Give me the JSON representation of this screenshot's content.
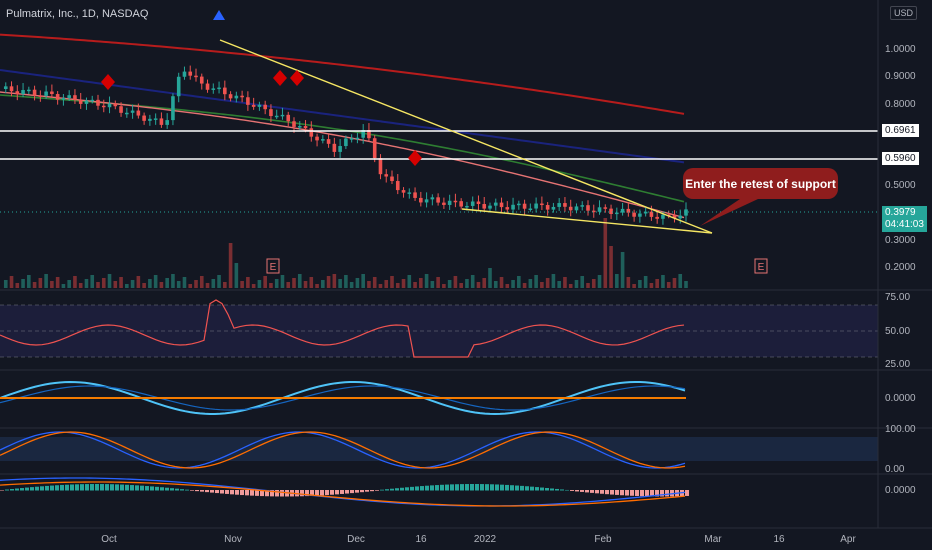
{
  "header": {
    "title": "Pulmatrix, Inc., 1D, NASDAQ",
    "currency": "USD"
  },
  "price_axis": {
    "ticks": [
      "1.0000",
      "0.9000",
      "0.8000",
      "0.7000",
      "0.6000",
      "0.5000",
      "0.4000",
      "0.3000",
      "0.2000"
    ],
    "levels": [
      {
        "label": "0.6961"
      },
      {
        "label": "0.5960"
      }
    ],
    "current": {
      "price": "0.3979",
      "countdown": "04:41:03"
    }
  },
  "annotation": {
    "text": "Enter the retest of support"
  },
  "earnings_marker": "E",
  "x_axis": {
    "labels": [
      "Oct",
      "Nov",
      "Dec",
      "16",
      "2022",
      "Feb",
      "Mar",
      "16",
      "Apr"
    ]
  },
  "rsi_panel": {
    "ticks": [
      "75.00",
      "50.00",
      "25.00"
    ]
  },
  "wave_panel": {
    "ticks": [
      "0.0000"
    ]
  },
  "stoch_panel": {
    "ticks": [
      "100.00",
      "0.00"
    ]
  },
  "macd_panel": {
    "ticks": [
      "0.0000"
    ]
  },
  "colors": {
    "background": "#131722",
    "up": "#26a69a",
    "down": "#ef5350",
    "ma_red": "#b71c1c",
    "ma_blue": "#1a237e",
    "ma_green": "#2e7d32",
    "trend_yellow": "#f5e663",
    "callout": "#8f1d1d"
  },
  "chart_data": {
    "type": "candlestick",
    "title": "Pulmatrix, Inc., 1D, NASDAQ",
    "ylabel": "USD",
    "series": [
      {
        "name": "close",
        "points": [
          {
            "date": "2021-09-20",
            "close": 0.85
          },
          {
            "date": "2021-10-01",
            "close": 0.83
          },
          {
            "date": "2021-10-15",
            "close": 0.79
          },
          {
            "date": "2021-10-28",
            "close": 0.72
          },
          {
            "date": "2021-11-01",
            "close": 0.93
          },
          {
            "date": "2021-11-05",
            "close": 0.87
          },
          {
            "date": "2021-11-15",
            "close": 0.81
          },
          {
            "date": "2021-11-26",
            "close": 0.73
          },
          {
            "date": "2021-12-06",
            "close": 0.63
          },
          {
            "date": "2021-12-13",
            "close": 0.7
          },
          {
            "date": "2021-12-17",
            "close": 0.53
          },
          {
            "date": "2021-12-24",
            "close": 0.45
          },
          {
            "date": "2022-01-03",
            "close": 0.43
          },
          {
            "date": "2022-01-14",
            "close": 0.42
          },
          {
            "date": "2022-01-28",
            "close": 0.42
          },
          {
            "date": "2022-02-10",
            "close": 0.4
          },
          {
            "date": "2022-02-21",
            "close": 0.38
          },
          {
            "date": "2022-02-25",
            "close": 0.3979
          }
        ]
      }
    ],
    "horizontal_levels": [
      0.6961,
      0.596
    ],
    "current_price": 0.3979,
    "ylim": [
      0.15,
      1.1
    ],
    "grid": false,
    "indicators": [
      "Volume",
      "RSI",
      "Momentum wave",
      "Stochastic",
      "MACD"
    ]
  }
}
